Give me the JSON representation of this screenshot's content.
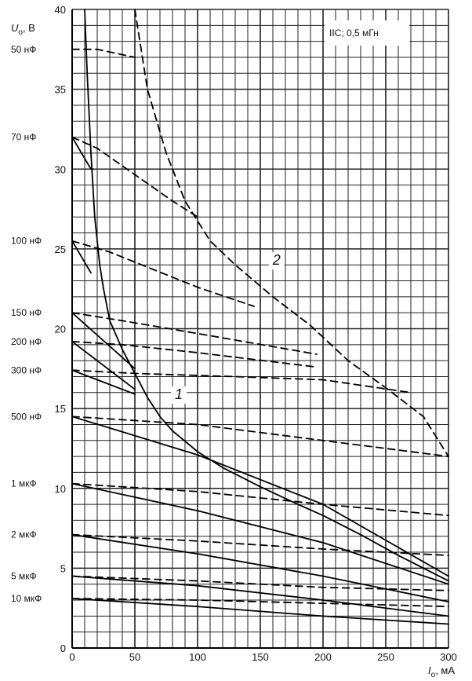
{
  "chart_data": {
    "type": "line",
    "xlabel": "I",
    "xlabel_sub": "o",
    "xlabel_unit": ", мА",
    "ylabel": "U",
    "ylabel_sub": "o",
    "ylabel_unit": ", В",
    "xlim": [
      0,
      300
    ],
    "ylim": [
      0,
      40
    ],
    "grid": true,
    "x_ticks": [
      0,
      50,
      100,
      150,
      200,
      250,
      300
    ],
    "y_ticks": [
      0,
      5,
      10,
      15,
      20,
      25,
      30,
      35,
      40
    ],
    "grid_x_step": 10,
    "grid_y_step": 1,
    "legend": "IIC; 0,5 мГн",
    "legend_position": "top-right",
    "curve_labels": [
      {
        "text": "1",
        "x": 85,
        "y": 15.6
      },
      {
        "text": "2",
        "x": 163,
        "y": 24
      }
    ],
    "capacitance_labels": [
      {
        "text": "50 нФ",
        "y": 37.5
      },
      {
        "text": "70 нФ",
        "y": 32
      },
      {
        "text": "100 нФ",
        "y": 25.5
      },
      {
        "text": "150 нФ",
        "y": 21
      },
      {
        "text": "200 нФ",
        "y": 19.2
      },
      {
        "text": "300 нФ",
        "y": 17.4
      },
      {
        "text": "500 нФ",
        "y": 14.5
      },
      {
        "text": "1 мкФ",
        "y": 10.3
      },
      {
        "text": "2 мкФ",
        "y": 7.1
      },
      {
        "text": "5 мкФ",
        "y": 4.5
      },
      {
        "text": "10 мкФ",
        "y": 3.1
      }
    ],
    "series": [
      {
        "label": "1",
        "style": "solid",
        "points": [
          [
            10,
            40
          ],
          [
            12,
            36
          ],
          [
            15,
            31
          ],
          [
            18,
            27
          ],
          [
            22,
            24
          ],
          [
            25,
            22.5
          ],
          [
            30,
            20.5
          ],
          [
            40,
            18.7
          ],
          [
            50,
            17.2
          ],
          [
            60,
            15.7
          ],
          [
            70,
            14.5
          ],
          [
            80,
            13.6
          ],
          [
            100,
            12.3
          ],
          [
            120,
            11.3
          ],
          [
            150,
            10.1
          ],
          [
            180,
            9
          ],
          [
            200,
            8.3
          ],
          [
            230,
            7.1
          ],
          [
            260,
            5.8
          ],
          [
            300,
            4.2
          ]
        ]
      },
      {
        "label": "2",
        "style": "dashed",
        "points": [
          [
            50,
            40
          ],
          [
            60,
            35
          ],
          [
            75,
            31
          ],
          [
            90,
            28
          ],
          [
            110,
            25.5
          ],
          [
            130,
            24
          ],
          [
            160,
            22
          ],
          [
            190,
            20.2
          ],
          [
            220,
            18
          ],
          [
            250,
            16.3
          ],
          [
            280,
            14.5
          ],
          [
            300,
            12
          ]
        ]
      },
      {
        "style": "dashed",
        "points": [
          [
            0,
            37.5
          ],
          [
            20,
            37.5
          ],
          [
            50,
            37
          ]
        ]
      },
      {
        "style": "solid",
        "points": [
          [
            0,
            32
          ],
          [
            15,
            30
          ],
          [
            17,
            30
          ]
        ]
      },
      {
        "style": "dashed",
        "points": [
          [
            0,
            32
          ],
          [
            20,
            31.3
          ],
          [
            80,
            28
          ],
          [
            100,
            27
          ]
        ]
      },
      {
        "style": "solid",
        "points": [
          [
            0,
            25.5
          ],
          [
            15,
            23.5
          ]
        ]
      },
      {
        "style": "dashed",
        "points": [
          [
            0,
            25.5
          ],
          [
            30,
            24.8
          ],
          [
            100,
            22.6
          ],
          [
            145,
            21.4
          ]
        ]
      },
      {
        "style": "solid",
        "points": [
          [
            0,
            21
          ],
          [
            50,
            17.5
          ]
        ]
      },
      {
        "style": "dashed",
        "points": [
          [
            0,
            21
          ],
          [
            40,
            20.5
          ],
          [
            100,
            19.7
          ],
          [
            195,
            18.4
          ]
        ]
      },
      {
        "style": "solid",
        "points": [
          [
            0,
            19.2
          ],
          [
            50,
            16.2
          ]
        ]
      },
      {
        "style": "dashed",
        "points": [
          [
            0,
            19.2
          ],
          [
            40,
            19
          ],
          [
            100,
            18.5
          ],
          [
            195,
            17.6
          ]
        ]
      },
      {
        "style": "solid",
        "points": [
          [
            0,
            17.4
          ],
          [
            50,
            15.9
          ]
        ]
      },
      {
        "style": "dashed",
        "points": [
          [
            0,
            17.4
          ],
          [
            50,
            17.2
          ],
          [
            130,
            17
          ],
          [
            200,
            16.8
          ],
          [
            270,
            16
          ]
        ]
      },
      {
        "style": "solid",
        "points": [
          [
            0,
            14.5
          ],
          [
            100,
            12.1
          ],
          [
            200,
            9
          ],
          [
            300,
            4.5
          ]
        ]
      },
      {
        "style": "dashed",
        "points": [
          [
            0,
            14.5
          ],
          [
            100,
            14
          ],
          [
            200,
            13
          ],
          [
            300,
            12
          ]
        ]
      },
      {
        "style": "solid",
        "points": [
          [
            0,
            10.3
          ],
          [
            100,
            8.6
          ],
          [
            200,
            6.6
          ],
          [
            300,
            4
          ]
        ]
      },
      {
        "style": "dashed",
        "points": [
          [
            0,
            10.3
          ],
          [
            100,
            9.8
          ],
          [
            200,
            9
          ],
          [
            300,
            8.3
          ]
        ]
      },
      {
        "style": "solid",
        "points": [
          [
            0,
            7.1
          ],
          [
            100,
            5.9
          ],
          [
            200,
            4.5
          ],
          [
            300,
            2.9
          ]
        ]
      },
      {
        "style": "dashed",
        "points": [
          [
            0,
            7.1
          ],
          [
            100,
            6.7
          ],
          [
            200,
            6.2
          ],
          [
            300,
            5.8
          ]
        ]
      },
      {
        "style": "solid",
        "points": [
          [
            0,
            4.5
          ],
          [
            100,
            3.9
          ],
          [
            200,
            3
          ],
          [
            300,
            2
          ]
        ]
      },
      {
        "style": "dashed",
        "points": [
          [
            0,
            4.5
          ],
          [
            100,
            4.2
          ],
          [
            200,
            3.8
          ],
          [
            300,
            3.6
          ]
        ]
      },
      {
        "style": "solid",
        "points": [
          [
            0,
            3.1
          ],
          [
            100,
            2.6
          ],
          [
            200,
            2
          ],
          [
            300,
            1.5
          ]
        ]
      },
      {
        "style": "dashed",
        "points": [
          [
            0,
            3.1
          ],
          [
            100,
            3
          ],
          [
            200,
            2.8
          ],
          [
            300,
            2.6
          ]
        ]
      }
    ]
  }
}
